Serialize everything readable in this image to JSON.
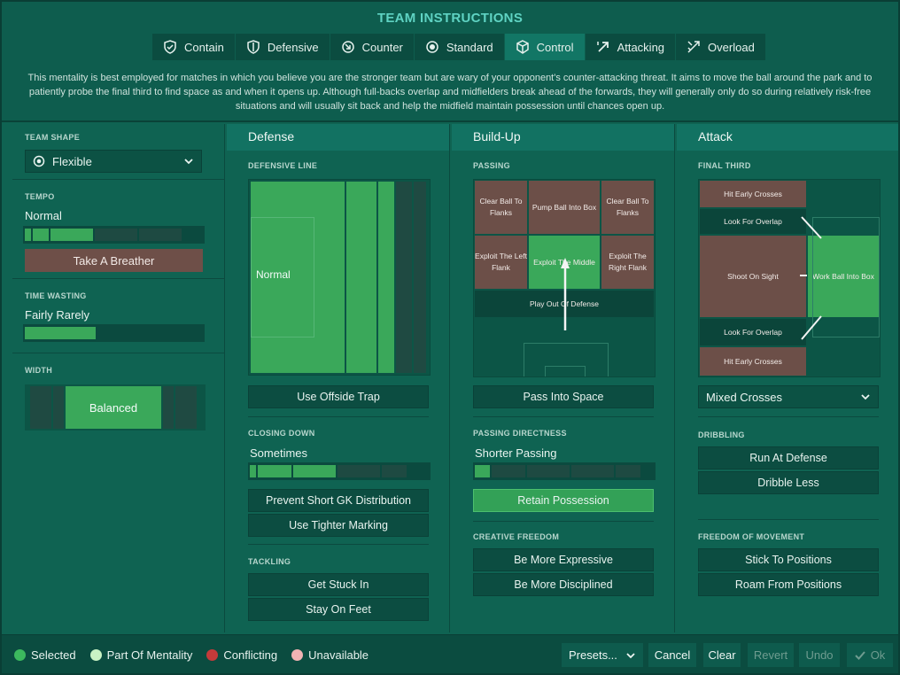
{
  "title": "TEAM INSTRUCTIONS",
  "tabs": [
    {
      "label": "Contain",
      "icon": "shield-check-icon"
    },
    {
      "label": "Defensive",
      "icon": "shield-icon"
    },
    {
      "label": "Counter",
      "icon": "counter-arrow-icon"
    },
    {
      "label": "Standard",
      "icon": "target-icon"
    },
    {
      "label": "Control",
      "icon": "control-cube-icon",
      "active": true
    },
    {
      "label": "Attacking",
      "icon": "attack-arrow-icon"
    },
    {
      "label": "Overload",
      "icon": "overload-arrows-icon"
    }
  ],
  "description": "This mentality is best employed for matches in which you believe you are the stronger team but are wary of your opponent's counter-attacking threat. It aims to move the ball around the park and to patiently probe the final third to find space as and when it opens up. Although full-backs overlap and midfielders break ahead of the forwards, they will generally only do so during relatively risk-free situations and will usually sit back and help the midfield maintain possession until chances open up.",
  "sidebar": {
    "team_shape_label": "TEAM SHAPE",
    "team_shape_value": "Flexible",
    "tempo_label": "TEMPO",
    "tempo_value": "Normal",
    "tempo_level": 0.4,
    "take_breather": "Take A Breather",
    "time_wasting_label": "TIME WASTING",
    "time_wasting_value": "Fairly Rarely",
    "time_wasting_level": 0.4,
    "width_label": "WIDTH",
    "width_value": "Balanced"
  },
  "defense": {
    "header": "Defense",
    "defensive_line_label": "DEFENSIVE LINE",
    "defensive_line_value": "Normal",
    "offside_trap": "Use Offside Trap",
    "closing_down_label": "CLOSING DOWN",
    "closing_down_value": "Sometimes",
    "closing_down_level": 0.5,
    "prevent_gk": "Prevent Short GK Distribution",
    "tighter_marking": "Use Tighter Marking",
    "tackling_label": "TACKLING",
    "get_stuck_in": "Get Stuck In",
    "stay_on_feet": "Stay On Feet"
  },
  "buildup": {
    "header": "Build-Up",
    "passing_label": "PASSING",
    "cells": {
      "clear_left": "Clear Ball To Flanks",
      "pump": "Pump Ball Into Box",
      "clear_right": "Clear Ball To Flanks",
      "exploit_left": "Exploit The Left Flank",
      "exploit_middle": "Exploit The Middle",
      "exploit_right": "Exploit The Right Flank",
      "play_out": "Play Out Of Defense"
    },
    "pass_into_space": "Pass Into Space",
    "directness_label": "PASSING DIRECTNESS",
    "directness_value": "Shorter Passing",
    "directness_level": 0.1,
    "retain_possession": "Retain Possession",
    "creative_label": "CREATIVE FREEDOM",
    "more_expressive": "Be More Expressive",
    "more_disciplined": "Be More Disciplined"
  },
  "attack": {
    "header": "Attack",
    "final_third_label": "FINAL THIRD",
    "cells": {
      "hit_early_top": "Hit Early Crosses",
      "overlap_top": "Look For Overlap",
      "shoot": "Shoot On Sight",
      "work_ball": "Work Ball Into Box",
      "overlap_bottom": "Look For Overlap",
      "hit_early_bottom": "Hit Early Crosses"
    },
    "crosses_value": "Mixed Crosses",
    "dribbling_label": "DRIBBLING",
    "run_at_defense": "Run At Defense",
    "dribble_less": "Dribble Less",
    "freedom_label": "FREEDOM OF MOVEMENT",
    "stick_positions": "Stick To Positions",
    "roam_positions": "Roam From Positions"
  },
  "legend": {
    "selected": "Selected",
    "part_of_mentality": "Part Of Mentality",
    "conflicting": "Conflicting",
    "unavailable": "Unavailable"
  },
  "footer": {
    "presets": "Presets...",
    "cancel": "Cancel",
    "clear": "Clear",
    "revert": "Revert",
    "undo": "Undo",
    "ok": "Ok"
  },
  "colors": {
    "selected": "#3cb95e",
    "part_of_mentality": "#c9f2c4",
    "conflicting": "#c43a3a",
    "unavailable": "#f0b3b3",
    "title": "#5fd3c3"
  }
}
